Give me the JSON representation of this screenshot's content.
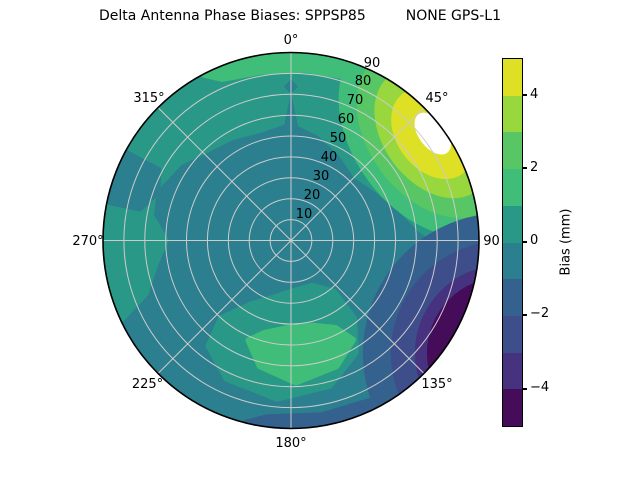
{
  "title": "Delta Antenna Phase Biases: SPPSP85         NONE GPS-L1",
  "polar": {
    "theta_labels": [
      "0°",
      "45°",
      "90",
      "135°",
      "180°",
      "225°",
      "270°",
      "315°"
    ],
    "r_labels": [
      "10",
      "20",
      "30",
      "40",
      "50",
      "60",
      "70",
      "80",
      "90"
    ]
  },
  "colorbar": {
    "label": "Bias (mm)",
    "ticks": [
      "4",
      "2",
      "0",
      "−2",
      "−4"
    ],
    "tick_values": [
      4,
      2,
      0,
      -2,
      -4
    ],
    "min": -5,
    "max": 5,
    "colors_low_to_high": [
      "#450c59",
      "#46327e",
      "#3d4e8a",
      "#34618d",
      "#2b7f8e",
      "#2a9887",
      "#40bd78",
      "#58c665",
      "#98d83e",
      "#dde025"
    ]
  },
  "palette": {
    "L0": "#450c59",
    "L1": "#46327e",
    "L2": "#3d4e8a",
    "L3": "#34618d",
    "L4": "#2b7f8e",
    "L5": "#2a9887",
    "L6": "#40bd78",
    "L7": "#58c665",
    "L8": "#98d83e",
    "L9": "#dde025",
    "over": "#ffffff",
    "grid": "#cccccc",
    "outline": "#000000"
  },
  "chart_data": {
    "type": "heatmap",
    "projection": "polar-contourf",
    "title": "Delta Antenna Phase Biases: SPPSP85         NONE GPS-L1",
    "colormap": "viridis",
    "colorbar_label": "Bias (mm)",
    "levels_mm": [
      -5,
      -4,
      -3,
      -2,
      -1,
      0,
      1,
      2,
      3,
      4,
      5
    ],
    "colorbar_tick_values": [
      -4,
      -2,
      0,
      2,
      4
    ],
    "theta_ticks_deg": [
      0,
      45,
      90,
      135,
      180,
      225,
      270,
      315
    ],
    "theta_zero_location": "N",
    "theta_direction": "clockwise",
    "r_ticks": [
      10,
      20,
      30,
      40,
      50,
      60,
      70,
      80,
      90
    ],
    "r_max": 90,
    "grid": true,
    "legend_position": "colorbar-right",
    "azimuth_deg": [
      0,
      45,
      90,
      135,
      180,
      225,
      270,
      315
    ],
    "radius": [
      0,
      30,
      60,
      90
    ],
    "bias_mm_grid_by_azimuth": [
      [
        -0.5,
        -0.5,
        0.5,
        1.5
      ],
      [
        -0.5,
        0.5,
        2.5,
        5.0
      ],
      [
        -0.5,
        0.5,
        0.5,
        -2.5
      ],
      [
        -0.5,
        -0.5,
        -1.5,
        -4.5
      ],
      [
        -0.5,
        0.5,
        1.5,
        -1.5
      ],
      [
        -0.5,
        -0.5,
        -0.5,
        -1.5
      ],
      [
        -0.5,
        -0.5,
        0.5,
        0.5
      ],
      [
        -0.5,
        -0.5,
        0.5,
        0.5
      ]
    ],
    "notable_features": [
      "Saturated maximum (> 5 mm, shown white above colormap) near azimuth 50°, radius 75–90",
      "Yellow/green bullseye bands (2 to 5 mm) around azimuth 25°–85° near the rim",
      "Dark minimum (−4 to −5 mm) hugging the rim from azimuth ~100° to ~140°",
      "Green arc (+1 to +2 mm) near azimuth 150°–205°, radius 40–68",
      "Thin +1 to +2 mm band along the rim near azimuth 330°–25°",
      "Background mostly −1 to +1 mm teal"
    ]
  }
}
